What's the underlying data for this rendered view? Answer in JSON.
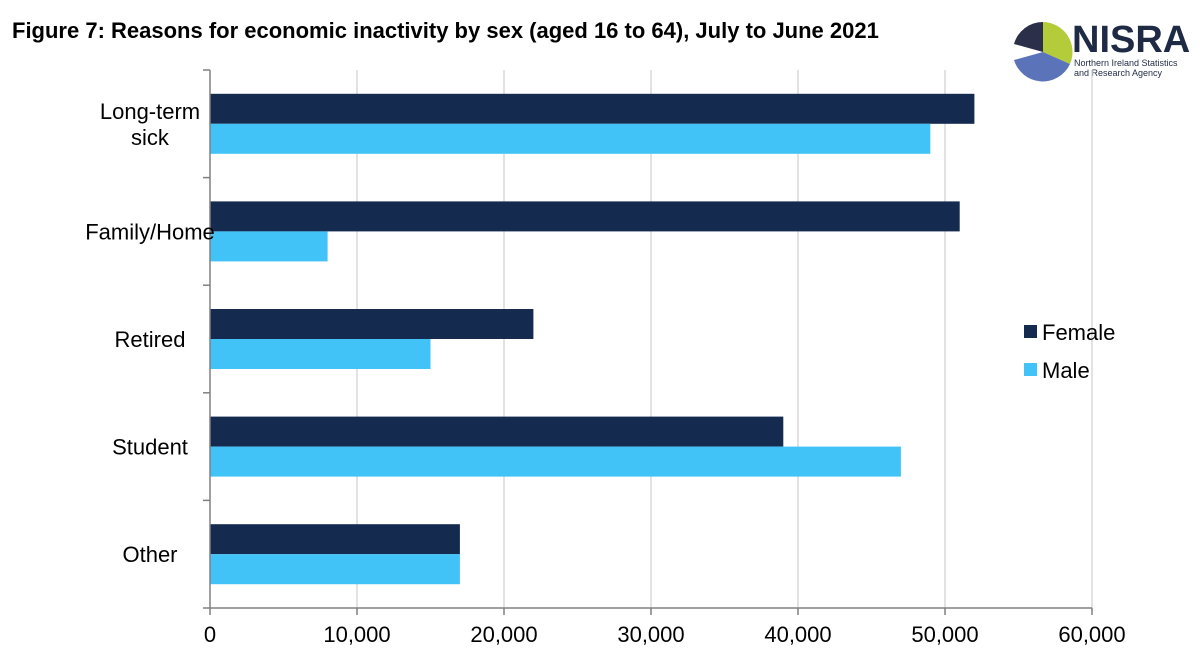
{
  "figure": {
    "title": "Figure 7: Reasons for economic inactivity by sex (aged 16 to 64), July to June 2021"
  },
  "logo": {
    "name": "NISRA",
    "subtitle_line1": "Northern Ireland Statistics",
    "subtitle_line2": "and Research Agency",
    "colors": {
      "dark": "#2b2f4a",
      "green": "#b5cc3a",
      "blue": "#5b73b8",
      "text": "#1f2a44"
    }
  },
  "chart_data": {
    "type": "bar",
    "orientation": "horizontal",
    "title": "Figure 7: Reasons for economic inactivity by sex (aged 16 to 64), July to June 2021",
    "xlabel": "",
    "ylabel": "",
    "categories": [
      [
        "Long-term",
        "sick"
      ],
      [
        "Family/Home"
      ],
      [
        "Retired"
      ],
      [
        "Student"
      ],
      [
        "Other"
      ]
    ],
    "series": [
      {
        "name": "Female",
        "color": "#142a4f",
        "values": [
          52000,
          51000,
          22000,
          39000,
          17000
        ]
      },
      {
        "name": "Male",
        "color": "#41c3f8",
        "values": [
          49000,
          8000,
          15000,
          47000,
          17000
        ]
      }
    ],
    "xlim": [
      0,
      60000
    ],
    "xticks": [
      0,
      10000,
      20000,
      30000,
      40000,
      50000,
      60000
    ],
    "xtick_labels": [
      "0",
      "10,000",
      "20,000",
      "30,000",
      "40,000",
      "50,000",
      "60,000"
    ],
    "grid": "vertical",
    "legend_position": "right"
  }
}
